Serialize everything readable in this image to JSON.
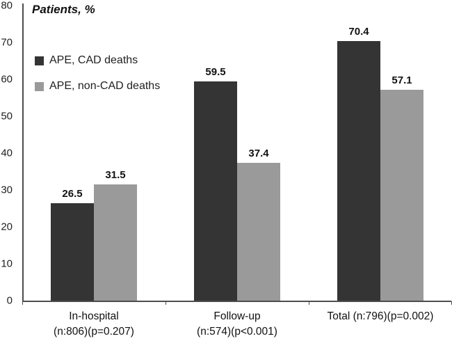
{
  "title": "Patients, %",
  "colors": {
    "series_dark": "#343434",
    "series_gray": "#9a9a9a",
    "axis_line": "#4d4d4d",
    "text": "#111111",
    "background": "#ffffff"
  },
  "legend": [
    {
      "label": "APE, CAD deaths",
      "color": "#343434"
    },
    {
      "label": "APE, non-CAD deaths",
      "color": "#9a9a9a"
    }
  ],
  "chart_data": {
    "type": "bar",
    "title": "Patients, %",
    "xlabel": "",
    "ylabel": "Patients, %",
    "ylim": [
      0,
      80
    ],
    "yticks": [
      80,
      70,
      60,
      50,
      40,
      30,
      20,
      10,
      0
    ],
    "grid": false,
    "data_labels": true,
    "legend_position": "upper-left-inside",
    "categories": [
      "In-hospital (n:806)(p=0.207)",
      "Follow-up (n:574)(p<0.001)",
      "Total (n:796)(p=0.002)"
    ],
    "categories_lines": [
      [
        "In-hospital",
        "(n:806)(p=0.207)"
      ],
      [
        "Follow-up",
        "(n:574)(p<0.001)"
      ],
      [
        "Total (n:796)(p=0.002)"
      ]
    ],
    "series": [
      {
        "name": "APE, CAD deaths",
        "color": "#343434",
        "values": [
          26.5,
          59.5,
          70.4
        ]
      },
      {
        "name": "APE, non-CAD deaths",
        "color": "#9a9a9a",
        "values": [
          31.5,
          37.4,
          57.1
        ]
      }
    ]
  }
}
